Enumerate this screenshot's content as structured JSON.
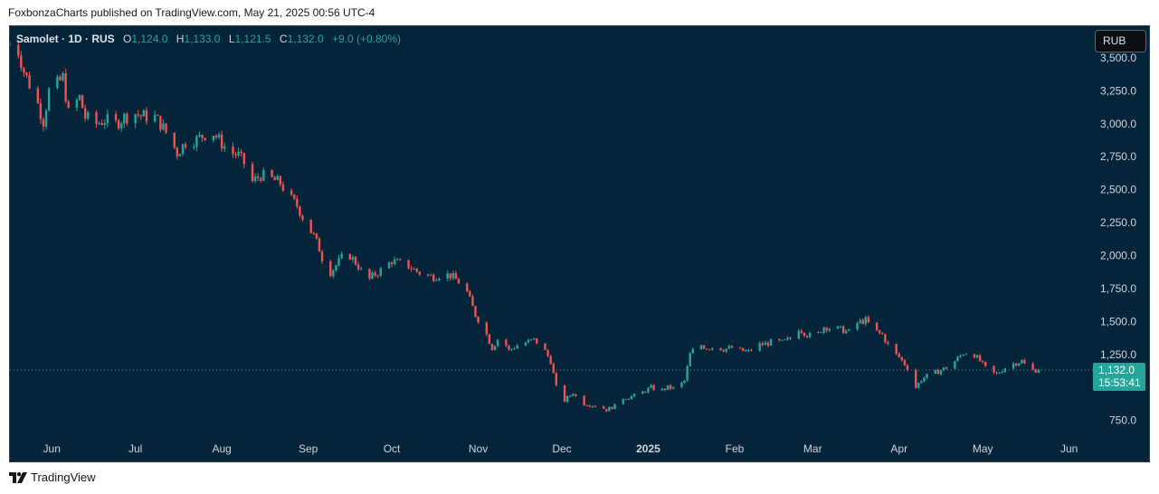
{
  "header": {
    "text": "FoxbonzaCharts published on TradingView.com, May 21, 2025 00:56 UTC-4"
  },
  "legend": {
    "symbol": "Samolet · 1D · RUS",
    "o_label": "O",
    "o_value": "1,124.0",
    "h_label": "H",
    "h_value": "1,133.0",
    "l_label": "L",
    "l_value": "1,121.5",
    "c_label": "C",
    "c_value": "1,132.0",
    "change": "+9.0 (+0.80%)"
  },
  "currency_button": {
    "label": "RUB"
  },
  "price_tag": {
    "value": "1,132.0",
    "countdown": "15:53:41"
  },
  "footer": {
    "brand": "TradingView"
  },
  "colors": {
    "background": "#04243a",
    "up": "#26a69a",
    "down": "#ef5350",
    "axis_text": "#d1d4dc",
    "price_tag": "#26a69a"
  },
  "chart_data": {
    "type": "candlestick",
    "y_tick_labels": [
      "3,500.0",
      "3,250.0",
      "3,000.0",
      "2,750.0",
      "2,500.0",
      "2,250.0",
      "2,000.0",
      "1,750.0",
      "1,500.0",
      "1,250.0",
      "750.0"
    ],
    "y_tick_values": [
      3500,
      3250,
      3000,
      2750,
      2500,
      2250,
      2000,
      1750,
      1500,
      1250,
      750
    ],
    "ylim": [
      610,
      3740
    ],
    "x_tick_labels": [
      "Jun",
      "Jul",
      "Aug",
      "Sep",
      "Oct",
      "Nov",
      "Dec",
      "2025",
      "Feb",
      "Mar",
      "Apr",
      "May",
      "Jun"
    ],
    "x_tick_dates": [
      "2024-06-01",
      "2024-07-01",
      "2024-08-01",
      "2024-09-01",
      "2024-10-01",
      "2024-11-01",
      "2024-12-01",
      "2025-01-01",
      "2025-02-01",
      "2025-03-01",
      "2025-04-01",
      "2025-05-01",
      "2025-06-01"
    ],
    "xlim": [
      "2024-05-17",
      "2025-06-05"
    ],
    "last_price": 1132,
    "closes": [
      {
        "date": "2024-05-17",
        "close": 3600
      },
      {
        "date": "2024-05-20",
        "close": 3550
      },
      {
        "date": "2024-05-22",
        "close": 3400
      },
      {
        "date": "2024-05-24",
        "close": 3300
      },
      {
        "date": "2024-05-27",
        "close": 3150
      },
      {
        "date": "2024-05-29",
        "close": 3020
      },
      {
        "date": "2024-05-31",
        "close": 3250
      },
      {
        "date": "2024-06-03",
        "close": 3300
      },
      {
        "date": "2024-06-05",
        "close": 3350
      },
      {
        "date": "2024-06-07",
        "close": 3080
      },
      {
        "date": "2024-06-11",
        "close": 3200
      },
      {
        "date": "2024-06-13",
        "close": 3050
      },
      {
        "date": "2024-06-17",
        "close": 3000
      },
      {
        "date": "2024-06-20",
        "close": 3030
      },
      {
        "date": "2024-06-24",
        "close": 3000
      },
      {
        "date": "2024-06-27",
        "close": 3050
      },
      {
        "date": "2024-07-01",
        "close": 3080
      },
      {
        "date": "2024-07-03",
        "close": 3060
      },
      {
        "date": "2024-07-08",
        "close": 3050
      },
      {
        "date": "2024-07-10",
        "close": 3000
      },
      {
        "date": "2024-07-13",
        "close": 2900
      },
      {
        "date": "2024-07-16",
        "close": 2780
      },
      {
        "date": "2024-07-19",
        "close": 2860
      },
      {
        "date": "2024-07-23",
        "close": 2880
      },
      {
        "date": "2024-07-26",
        "close": 2920
      },
      {
        "date": "2024-07-29",
        "close": 2930
      },
      {
        "date": "2024-08-01",
        "close": 2850
      },
      {
        "date": "2024-08-04",
        "close": 2780
      },
      {
        "date": "2024-08-07",
        "close": 2760
      },
      {
        "date": "2024-08-09",
        "close": 2700
      },
      {
        "date": "2024-08-12",
        "close": 2560
      },
      {
        "date": "2024-08-15",
        "close": 2610
      },
      {
        "date": "2024-08-19",
        "close": 2580
      },
      {
        "date": "2024-08-22",
        "close": 2550
      },
      {
        "date": "2024-08-25",
        "close": 2450
      },
      {
        "date": "2024-08-28",
        "close": 2380
      },
      {
        "date": "2024-08-31",
        "close": 2250
      },
      {
        "date": "2024-09-03",
        "close": 2150
      },
      {
        "date": "2024-09-05",
        "close": 2050
      },
      {
        "date": "2024-09-08",
        "close": 1850
      },
      {
        "date": "2024-09-10",
        "close": 1900
      },
      {
        "date": "2024-09-13",
        "close": 1980
      },
      {
        "date": "2024-09-16",
        "close": 2000
      },
      {
        "date": "2024-09-19",
        "close": 1920
      },
      {
        "date": "2024-09-22",
        "close": 1800
      },
      {
        "date": "2024-09-25",
        "close": 1860
      },
      {
        "date": "2024-09-28",
        "close": 1900
      },
      {
        "date": "2024-10-01",
        "close": 1960
      },
      {
        "date": "2024-10-04",
        "close": 1940
      },
      {
        "date": "2024-10-07",
        "close": 1920
      },
      {
        "date": "2024-10-10",
        "close": 1880
      },
      {
        "date": "2024-10-13",
        "close": 1850
      },
      {
        "date": "2024-10-16",
        "close": 1840
      },
      {
        "date": "2024-10-19",
        "close": 1860
      },
      {
        "date": "2024-10-22",
        "close": 1850
      },
      {
        "date": "2024-10-25",
        "close": 1800
      },
      {
        "date": "2024-10-28",
        "close": 1720
      },
      {
        "date": "2024-10-31",
        "close": 1550
      },
      {
        "date": "2024-11-03",
        "close": 1450
      },
      {
        "date": "2024-11-06",
        "close": 1300
      },
      {
        "date": "2024-11-09",
        "close": 1400
      },
      {
        "date": "2024-11-12",
        "close": 1280
      },
      {
        "date": "2024-11-15",
        "close": 1320
      },
      {
        "date": "2024-11-18",
        "close": 1340
      },
      {
        "date": "2024-11-21",
        "close": 1360
      },
      {
        "date": "2024-11-24",
        "close": 1310
      },
      {
        "date": "2024-11-27",
        "close": 1200
      },
      {
        "date": "2024-11-29",
        "close": 1000
      },
      {
        "date": "2024-12-02",
        "close": 900
      },
      {
        "date": "2024-12-05",
        "close": 960
      },
      {
        "date": "2024-12-08",
        "close": 880
      },
      {
        "date": "2024-12-11",
        "close": 870
      },
      {
        "date": "2024-12-14",
        "close": 860
      },
      {
        "date": "2024-12-17",
        "close": 830
      },
      {
        "date": "2024-12-20",
        "close": 860
      },
      {
        "date": "2024-12-23",
        "close": 920
      },
      {
        "date": "2024-12-26",
        "close": 930
      },
      {
        "date": "2024-12-29",
        "close": 950
      },
      {
        "date": "2025-01-02",
        "close": 1000
      },
      {
        "date": "2025-01-05",
        "close": 970
      },
      {
        "date": "2025-01-08",
        "close": 1000
      },
      {
        "date": "2025-01-11",
        "close": 990
      },
      {
        "date": "2025-01-14",
        "close": 1050
      },
      {
        "date": "2025-01-16",
        "close": 1250
      },
      {
        "date": "2025-01-19",
        "close": 1330
      },
      {
        "date": "2025-01-22",
        "close": 1300
      },
      {
        "date": "2025-01-25",
        "close": 1310
      },
      {
        "date": "2025-01-28",
        "close": 1290
      },
      {
        "date": "2025-01-31",
        "close": 1300
      },
      {
        "date": "2025-02-03",
        "close": 1280
      },
      {
        "date": "2025-02-06",
        "close": 1270
      },
      {
        "date": "2025-02-09",
        "close": 1320
      },
      {
        "date": "2025-02-12",
        "close": 1330
      },
      {
        "date": "2025-02-15",
        "close": 1350
      },
      {
        "date": "2025-02-18",
        "close": 1340
      },
      {
        "date": "2025-02-21",
        "close": 1370
      },
      {
        "date": "2025-02-24",
        "close": 1450
      },
      {
        "date": "2025-02-27",
        "close": 1400
      },
      {
        "date": "2025-03-02",
        "close": 1380
      },
      {
        "date": "2025-03-05",
        "close": 1460
      },
      {
        "date": "2025-03-08",
        "close": 1450
      },
      {
        "date": "2025-03-11",
        "close": 1440
      },
      {
        "date": "2025-03-14",
        "close": 1420
      },
      {
        "date": "2025-03-17",
        "close": 1490
      },
      {
        "date": "2025-03-20",
        "close": 1510
      },
      {
        "date": "2025-03-23",
        "close": 1430
      },
      {
        "date": "2025-03-26",
        "close": 1400
      },
      {
        "date": "2025-03-29",
        "close": 1280
      },
      {
        "date": "2025-04-01",
        "close": 1230
      },
      {
        "date": "2025-04-04",
        "close": 1150
      },
      {
        "date": "2025-04-07",
        "close": 1000
      },
      {
        "date": "2025-04-09",
        "close": 1060
      },
      {
        "date": "2025-04-12",
        "close": 1100
      },
      {
        "date": "2025-04-15",
        "close": 1120
      },
      {
        "date": "2025-04-18",
        "close": 1150
      },
      {
        "date": "2025-04-21",
        "close": 1200
      },
      {
        "date": "2025-04-24",
        "close": 1260
      },
      {
        "date": "2025-04-27",
        "close": 1270
      },
      {
        "date": "2025-04-30",
        "close": 1200
      },
      {
        "date": "2025-05-03",
        "close": 1120
      },
      {
        "date": "2025-05-06",
        "close": 1100
      },
      {
        "date": "2025-05-09",
        "close": 1150
      },
      {
        "date": "2025-05-12",
        "close": 1180
      },
      {
        "date": "2025-05-15",
        "close": 1200
      },
      {
        "date": "2025-05-17",
        "close": 1150
      },
      {
        "date": "2025-05-19",
        "close": 1130
      },
      {
        "date": "2025-05-21",
        "close": 1132
      }
    ]
  }
}
